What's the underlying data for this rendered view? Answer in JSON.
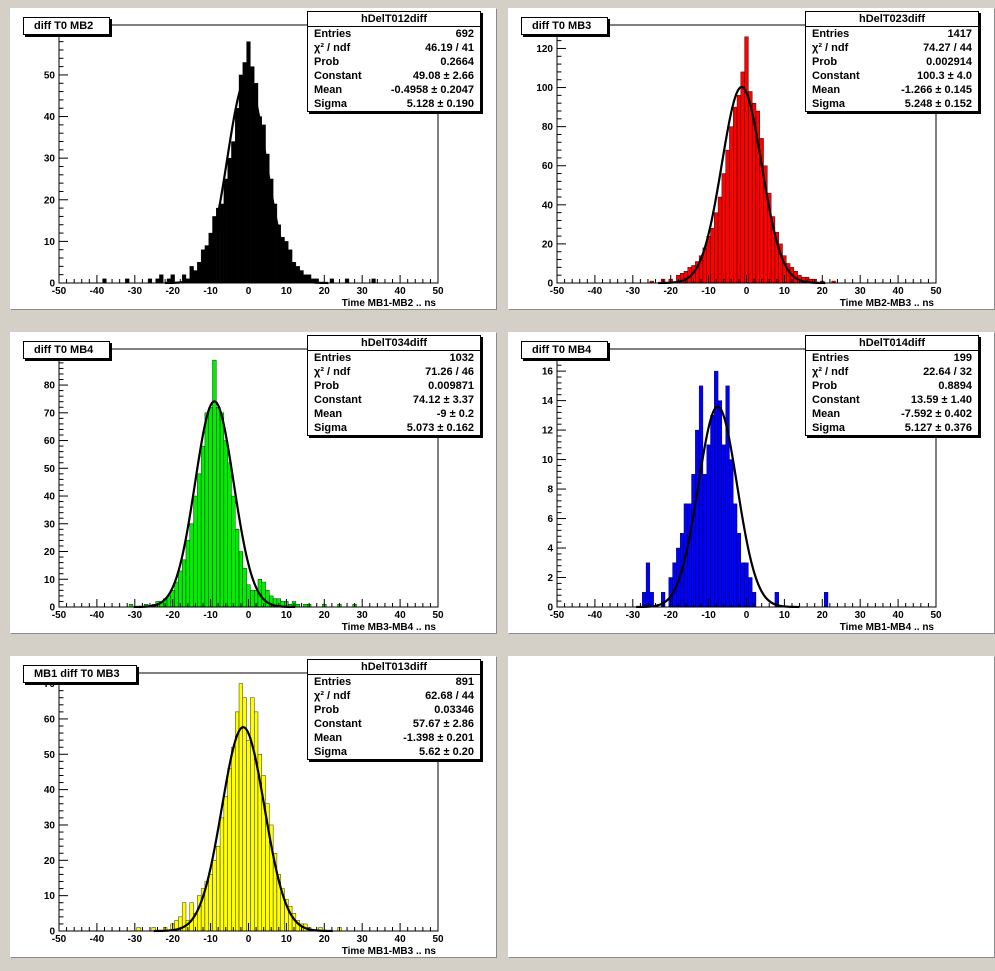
{
  "chart_data": [
    {
      "type": "histogram",
      "pad_title": "diff T0 MB2",
      "stats_name": "hDelT012diff",
      "stats": [
        {
          "label": "Entries",
          "value": "692"
        },
        {
          "label": "χ² / ndf",
          "value": "46.19 / 41"
        },
        {
          "label": "Prob",
          "value": "0.2664"
        },
        {
          "label": "Constant",
          "value": "49.08 ± 2.66"
        },
        {
          "label": "Mean",
          "value": "-0.4958 ± 0.2047"
        },
        {
          "label": "Sigma",
          "value": "5.128 ± 0.190"
        }
      ],
      "xlabel": "Time MB1-MB2  ..  ns",
      "xlim": [
        -50,
        50
      ],
      "ylim": [
        0,
        62
      ],
      "yticks": [
        0,
        10,
        20,
        30,
        40,
        50,
        60
      ],
      "xticks": [
        -50,
        -40,
        -30,
        -20,
        -10,
        0,
        10,
        20,
        30,
        40,
        50
      ],
      "color": "#000000",
      "fit": {
        "constant": 49.08,
        "mean": -0.4958,
        "sigma": 5.128
      },
      "bin_width": 1,
      "bins": [
        {
          "x": -38,
          "y": 1
        },
        {
          "x": -32,
          "y": 1
        },
        {
          "x": -26,
          "y": 1
        },
        {
          "x": -24,
          "y": 1
        },
        {
          "x": -23,
          "y": 2
        },
        {
          "x": -21,
          "y": 1
        },
        {
          "x": -20,
          "y": 2
        },
        {
          "x": -17,
          "y": 2
        },
        {
          "x": -16,
          "y": 1
        },
        {
          "x": -15,
          "y": 4
        },
        {
          "x": -14,
          "y": 3
        },
        {
          "x": -13,
          "y": 5
        },
        {
          "x": -12,
          "y": 8
        },
        {
          "x": -11,
          "y": 9
        },
        {
          "x": -10,
          "y": 12
        },
        {
          "x": -9,
          "y": 16
        },
        {
          "x": -8,
          "y": 18
        },
        {
          "x": -7,
          "y": 19
        },
        {
          "x": -6,
          "y": 25
        },
        {
          "x": -5,
          "y": 30
        },
        {
          "x": -4,
          "y": 34
        },
        {
          "x": -3,
          "y": 42
        },
        {
          "x": -2,
          "y": 50
        },
        {
          "x": -1,
          "y": 53
        },
        {
          "x": 0,
          "y": 58
        },
        {
          "x": 1,
          "y": 52
        },
        {
          "x": 2,
          "y": 48
        },
        {
          "x": 3,
          "y": 40
        },
        {
          "x": 4,
          "y": 38
        },
        {
          "x": 5,
          "y": 31
        },
        {
          "x": 6,
          "y": 25
        },
        {
          "x": 7,
          "y": 19
        },
        {
          "x": 8,
          "y": 14
        },
        {
          "x": 9,
          "y": 11
        },
        {
          "x": 10,
          "y": 10
        },
        {
          "x": 11,
          "y": 8
        },
        {
          "x": 12,
          "y": 5
        },
        {
          "x": 13,
          "y": 4
        },
        {
          "x": 14,
          "y": 3
        },
        {
          "x": 15,
          "y": 2
        },
        {
          "x": 16,
          "y": 2
        },
        {
          "x": 17,
          "y": 1
        },
        {
          "x": 18,
          "y": 1
        },
        {
          "x": 22,
          "y": 1
        },
        {
          "x": 26,
          "y": 1
        },
        {
          "x": 33,
          "y": 1
        }
      ]
    },
    {
      "type": "histogram",
      "pad_title": "diff T0 MB3",
      "stats_name": "hDelT023diff",
      "stats": [
        {
          "label": "Entries",
          "value": "1417"
        },
        {
          "label": "χ² / ndf",
          "value": "74.27 / 44"
        },
        {
          "label": "Prob",
          "value": "0.002914"
        },
        {
          "label": "Constant",
          "value": "100.3 ± 4.0"
        },
        {
          "label": "Mean",
          "value": "-1.266 ± 0.145"
        },
        {
          "label": "Sigma",
          "value": "5.248 ± 0.152"
        }
      ],
      "xlabel": "Time MB2-MB3  ..  ns",
      "xlim": [
        -50,
        50
      ],
      "ylim": [
        0,
        132
      ],
      "yticks": [
        0,
        20,
        40,
        60,
        80,
        100,
        120
      ],
      "xticks": [
        -50,
        -40,
        -30,
        -20,
        -10,
        0,
        10,
        20,
        30,
        40,
        50
      ],
      "color": "#ff0000",
      "fit": {
        "constant": 100.3,
        "mean": -1.266,
        "sigma": 5.248
      },
      "bin_width": 1,
      "bins": [
        {
          "x": -25,
          "y": 1
        },
        {
          "x": -22,
          "y": 2
        },
        {
          "x": -20,
          "y": 2
        },
        {
          "x": -18,
          "y": 4
        },
        {
          "x": -17,
          "y": 5
        },
        {
          "x": -16,
          "y": 6
        },
        {
          "x": -15,
          "y": 8
        },
        {
          "x": -14,
          "y": 9
        },
        {
          "x": -13,
          "y": 11
        },
        {
          "x": -12,
          "y": 14
        },
        {
          "x": -11,
          "y": 18
        },
        {
          "x": -10,
          "y": 24
        },
        {
          "x": -9,
          "y": 28
        },
        {
          "x": -8,
          "y": 36
        },
        {
          "x": -7,
          "y": 44
        },
        {
          "x": -6,
          "y": 56
        },
        {
          "x": -5,
          "y": 68
        },
        {
          "x": -4,
          "y": 80
        },
        {
          "x": -3,
          "y": 90
        },
        {
          "x": -2,
          "y": 96
        },
        {
          "x": -1,
          "y": 108
        },
        {
          "x": 0,
          "y": 126
        },
        {
          "x": 1,
          "y": 98
        },
        {
          "x": 2,
          "y": 92
        },
        {
          "x": 3,
          "y": 88
        },
        {
          "x": 4,
          "y": 74
        },
        {
          "x": 5,
          "y": 60
        },
        {
          "x": 6,
          "y": 46
        },
        {
          "x": 7,
          "y": 34
        },
        {
          "x": 8,
          "y": 26
        },
        {
          "x": 9,
          "y": 20
        },
        {
          "x": 10,
          "y": 14
        },
        {
          "x": 11,
          "y": 10
        },
        {
          "x": 12,
          "y": 8
        },
        {
          "x": 13,
          "y": 6
        },
        {
          "x": 14,
          "y": 4
        },
        {
          "x": 15,
          "y": 3
        },
        {
          "x": 16,
          "y": 3
        },
        {
          "x": 17,
          "y": 2
        },
        {
          "x": 18,
          "y": 2
        },
        {
          "x": 20,
          "y": 1
        },
        {
          "x": 23,
          "y": 1
        }
      ]
    },
    {
      "type": "histogram",
      "pad_title": "diff T0 MB4",
      "stats_name": "hDelT034diff",
      "stats": [
        {
          "label": "Entries",
          "value": "1032"
        },
        {
          "label": "χ² / ndf",
          "value": "71.26 / 46"
        },
        {
          "label": "Prob",
          "value": "0.009871"
        },
        {
          "label": "Constant",
          "value": "74.12 ± 3.37"
        },
        {
          "label": "Mean",
          "value": "-9 ± 0.2"
        },
        {
          "label": "Sigma",
          "value": "5.073 ± 0.162"
        }
      ],
      "xlabel": "Time MB3-MB4  ..  ns",
      "xlim": [
        -50,
        50
      ],
      "ylim": [
        0,
        93
      ],
      "yticks": [
        0,
        10,
        20,
        30,
        40,
        50,
        60,
        70,
        80,
        90
      ],
      "xticks": [
        -50,
        -40,
        -30,
        -20,
        -10,
        0,
        10,
        20,
        30,
        40,
        50
      ],
      "color": "#00ee00",
      "fit": {
        "constant": 74.12,
        "mean": -9.0,
        "sigma": 5.073
      },
      "bin_width": 1,
      "bins": [
        {
          "x": -31,
          "y": 1
        },
        {
          "x": -27,
          "y": 1
        },
        {
          "x": -25,
          "y": 1
        },
        {
          "x": -24,
          "y": 2
        },
        {
          "x": -23,
          "y": 2
        },
        {
          "x": -22,
          "y": 3
        },
        {
          "x": -21,
          "y": 4
        },
        {
          "x": -20,
          "y": 6
        },
        {
          "x": -19,
          "y": 9
        },
        {
          "x": -18,
          "y": 13
        },
        {
          "x": -17,
          "y": 17
        },
        {
          "x": -16,
          "y": 24
        },
        {
          "x": -15,
          "y": 30
        },
        {
          "x": -14,
          "y": 40
        },
        {
          "x": -13,
          "y": 48
        },
        {
          "x": -12,
          "y": 58
        },
        {
          "x": -11,
          "y": 70
        },
        {
          "x": -10,
          "y": 72
        },
        {
          "x": -9,
          "y": 89
        },
        {
          "x": -8,
          "y": 72
        },
        {
          "x": -7,
          "y": 70
        },
        {
          "x": -6,
          "y": 60
        },
        {
          "x": -5,
          "y": 52
        },
        {
          "x": -4,
          "y": 40
        },
        {
          "x": -3,
          "y": 28
        },
        {
          "x": -2,
          "y": 20
        },
        {
          "x": -1,
          "y": 14
        },
        {
          "x": 0,
          "y": 8
        },
        {
          "x": 1,
          "y": 6
        },
        {
          "x": 2,
          "y": 6
        },
        {
          "x": 3,
          "y": 10
        },
        {
          "x": 4,
          "y": 9
        },
        {
          "x": 5,
          "y": 6
        },
        {
          "x": 6,
          "y": 4
        },
        {
          "x": 7,
          "y": 3
        },
        {
          "x": 8,
          "y": 3
        },
        {
          "x": 9,
          "y": 2
        },
        {
          "x": 10,
          "y": 2
        },
        {
          "x": 11,
          "y": 1
        },
        {
          "x": 12,
          "y": 2
        },
        {
          "x": 13,
          "y": 1
        },
        {
          "x": 15,
          "y": 1
        },
        {
          "x": 16,
          "y": 1
        },
        {
          "x": 20,
          "y": 1
        },
        {
          "x": 24,
          "y": 1
        },
        {
          "x": 28,
          "y": 1
        }
      ]
    },
    {
      "type": "histogram",
      "pad_title": "diff T0 MB4",
      "stats_name": "hDelT014diff",
      "stats": [
        {
          "label": "Entries",
          "value": "199"
        },
        {
          "label": "χ² / ndf",
          "value": "22.64 / 32"
        },
        {
          "label": "Prob",
          "value": "0.8894"
        },
        {
          "label": "Constant",
          "value": "13.59 ± 1.40"
        },
        {
          "label": "Mean",
          "value": "-7.592 ± 0.402"
        },
        {
          "label": "Sigma",
          "value": "5.127 ± 0.376"
        }
      ],
      "xlabel": "Time MB1-MB4  ..  ns",
      "xlim": [
        -50,
        50
      ],
      "ylim": [
        0,
        17.5
      ],
      "yticks": [
        0,
        2,
        4,
        6,
        8,
        10,
        12,
        14,
        16
      ],
      "xticks": [
        -50,
        -40,
        -30,
        -20,
        -10,
        0,
        10,
        20,
        30,
        40,
        50
      ],
      "color": "#0000ff",
      "fit": {
        "constant": 13.59,
        "mean": -7.592,
        "sigma": 5.127
      },
      "bin_width": 1,
      "bins": [
        {
          "x": -27,
          "y": 1
        },
        {
          "x": -26,
          "y": 3
        },
        {
          "x": -25,
          "y": 1
        },
        {
          "x": -22,
          "y": 1
        },
        {
          "x": -20,
          "y": 2
        },
        {
          "x": -19,
          "y": 3
        },
        {
          "x": -18,
          "y": 4
        },
        {
          "x": -17,
          "y": 5
        },
        {
          "x": -16,
          "y": 7
        },
        {
          "x": -15,
          "y": 7
        },
        {
          "x": -14,
          "y": 9
        },
        {
          "x": -13,
          "y": 12
        },
        {
          "x": -12,
          "y": 15
        },
        {
          "x": -11,
          "y": 9
        },
        {
          "x": -10,
          "y": 11
        },
        {
          "x": -9,
          "y": 13
        },
        {
          "x": -8,
          "y": 16
        },
        {
          "x": -7,
          "y": 14
        },
        {
          "x": -6,
          "y": 11
        },
        {
          "x": -5,
          "y": 15
        },
        {
          "x": -4,
          "y": 10
        },
        {
          "x": -3,
          "y": 7
        },
        {
          "x": -2,
          "y": 5
        },
        {
          "x": -1,
          "y": 3
        },
        {
          "x": 0,
          "y": 3
        },
        {
          "x": 1,
          "y": 2
        },
        {
          "x": 2,
          "y": 1
        },
        {
          "x": 8,
          "y": 1
        },
        {
          "x": 21,
          "y": 1
        }
      ]
    },
    {
      "type": "histogram",
      "pad_title": "MB1 diff T0 MB3",
      "stats_name": "hDelT013diff",
      "stats": [
        {
          "label": "Entries",
          "value": "891"
        },
        {
          "label": "χ² / ndf",
          "value": "62.68 / 44"
        },
        {
          "label": "Prob",
          "value": "0.03346"
        },
        {
          "label": "Constant",
          "value": "57.67 ± 2.86"
        },
        {
          "label": "Mean",
          "value": "-1.398 ± 0.201"
        },
        {
          "label": "Sigma",
          "value": "5.62 ± 0.20"
        }
      ],
      "xlabel": "Time MB1-MB3  ..  ns",
      "xlim": [
        -50,
        50
      ],
      "ylim": [
        0,
        73
      ],
      "yticks": [
        0,
        10,
        20,
        30,
        40,
        50,
        60,
        70
      ],
      "xticks": [
        -50,
        -40,
        -30,
        -20,
        -10,
        0,
        10,
        20,
        30,
        40,
        50
      ],
      "color": "#ffff00",
      "fit": {
        "constant": 57.67,
        "mean": -1.398,
        "sigma": 5.62
      },
      "bin_width": 1,
      "bins": [
        {
          "x": -29,
          "y": 1
        },
        {
          "x": -25,
          "y": 1
        },
        {
          "x": -22,
          "y": 1
        },
        {
          "x": -20,
          "y": 2
        },
        {
          "x": -19,
          "y": 3
        },
        {
          "x": -18,
          "y": 4
        },
        {
          "x": -17,
          "y": 8
        },
        {
          "x": -16,
          "y": 3
        },
        {
          "x": -15,
          "y": 8
        },
        {
          "x": -14,
          "y": 5
        },
        {
          "x": -13,
          "y": 10
        },
        {
          "x": -12,
          "y": 12
        },
        {
          "x": -11,
          "y": 14
        },
        {
          "x": -10,
          "y": 16
        },
        {
          "x": -9,
          "y": 20
        },
        {
          "x": -8,
          "y": 24
        },
        {
          "x": -7,
          "y": 32
        },
        {
          "x": -6,
          "y": 38
        },
        {
          "x": -5,
          "y": 46
        },
        {
          "x": -4,
          "y": 52
        },
        {
          "x": -3,
          "y": 62
        },
        {
          "x": -2,
          "y": 70
        },
        {
          "x": -1,
          "y": 66
        },
        {
          "x": 0,
          "y": 54
        },
        {
          "x": 1,
          "y": 66
        },
        {
          "x": 2,
          "y": 62
        },
        {
          "x": 3,
          "y": 50
        },
        {
          "x": 4,
          "y": 44
        },
        {
          "x": 5,
          "y": 36
        },
        {
          "x": 6,
          "y": 30
        },
        {
          "x": 7,
          "y": 22
        },
        {
          "x": 8,
          "y": 16
        },
        {
          "x": 9,
          "y": 12
        },
        {
          "x": 10,
          "y": 9
        },
        {
          "x": 11,
          "y": 7
        },
        {
          "x": 12,
          "y": 5
        },
        {
          "x": 13,
          "y": 3
        },
        {
          "x": 14,
          "y": 2
        },
        {
          "x": 15,
          "y": 2
        },
        {
          "x": 16,
          "y": 1
        },
        {
          "x": 19,
          "y": 1
        },
        {
          "x": 24,
          "y": 1
        }
      ]
    }
  ]
}
